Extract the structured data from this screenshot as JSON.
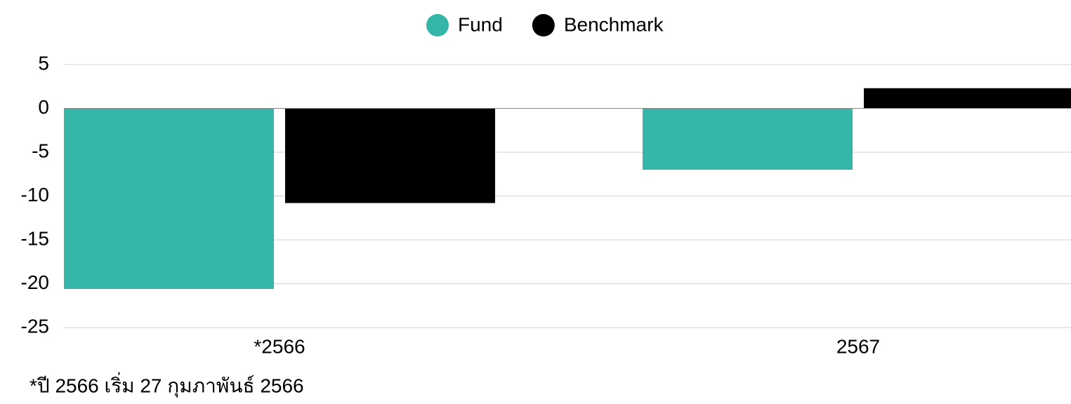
{
  "chart_data": {
    "type": "bar",
    "categories": [
      "*2566",
      "2567"
    ],
    "series": [
      {
        "name": "Fund",
        "color": "#36b5a9",
        "values": [
          -20.6,
          -7.0
        ]
      },
      {
        "name": "Benchmark",
        "color": "#000000",
        "values": [
          -10.8,
          2.3
        ]
      }
    ],
    "ylim": [
      -25,
      5
    ],
    "yticks": [
      -25,
      -20,
      -15,
      -10,
      -5,
      0,
      5
    ],
    "grid": true,
    "legend": "top",
    "footnote": "*ปี 2566 เริ่ม 27 กุมภาพันธ์ 2566"
  }
}
